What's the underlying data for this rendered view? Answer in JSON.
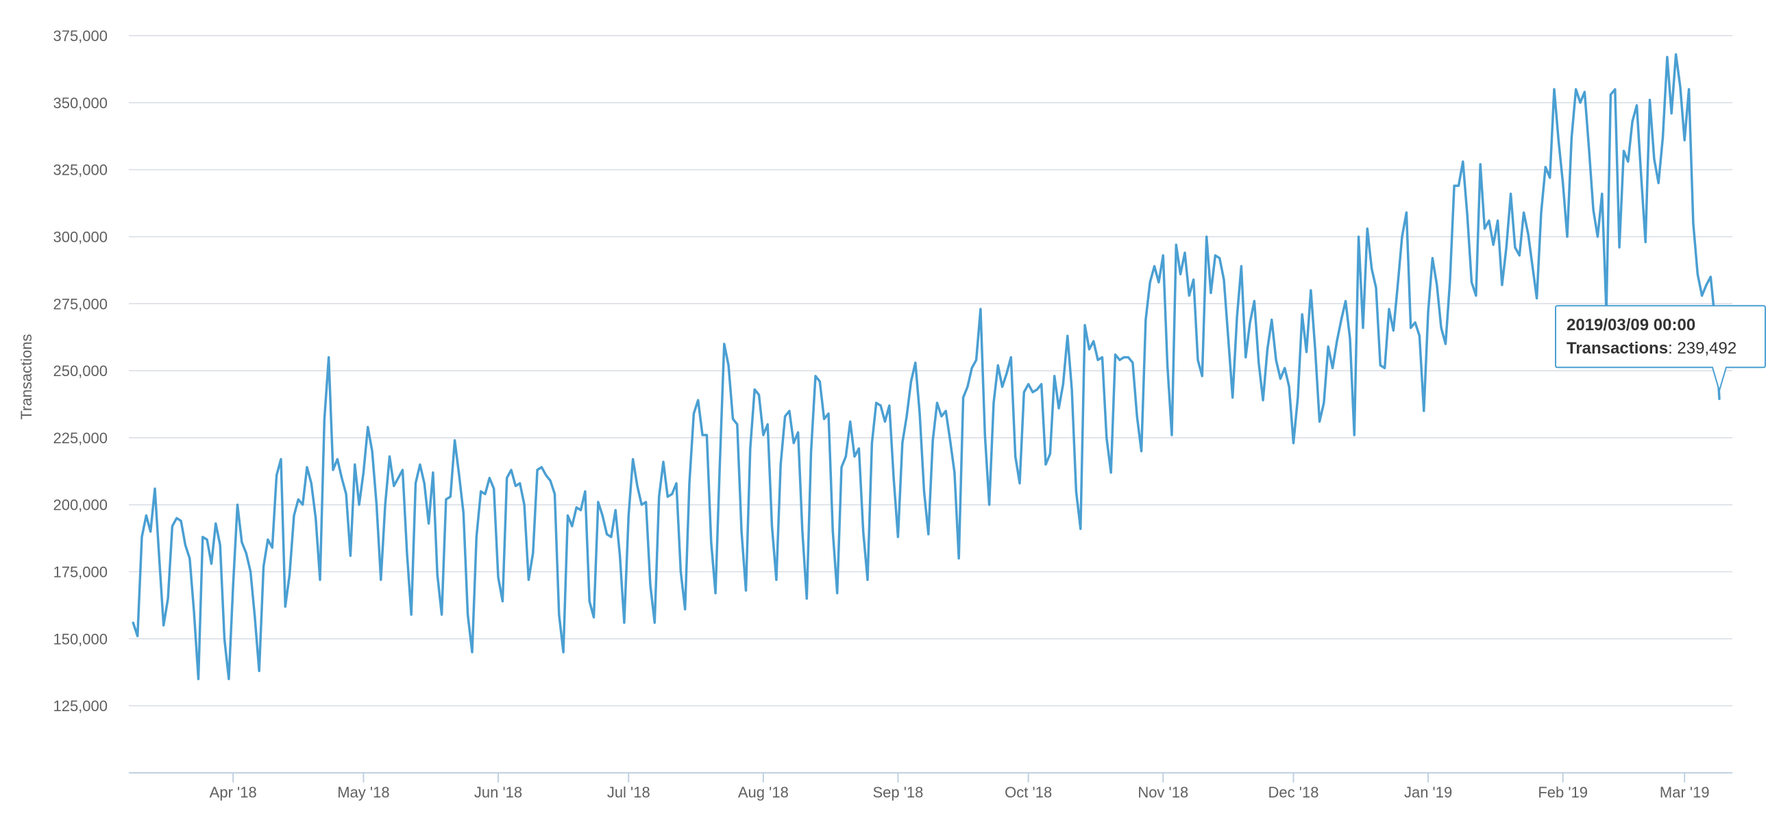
{
  "chart_data": {
    "type": "line",
    "ylabel": "Transactions",
    "xlabel": "",
    "ylim": [
      100000,
      375000
    ],
    "xlim": [
      "2018-03-08",
      "2019-03-12"
    ],
    "yticks": [
      {
        "value": 125000,
        "label": "125,000"
      },
      {
        "value": 150000,
        "label": "150,000"
      },
      {
        "value": 175000,
        "label": "175,000"
      },
      {
        "value": 200000,
        "label": "200,000"
      },
      {
        "value": 225000,
        "label": "225,000"
      },
      {
        "value": 250000,
        "label": "250,000"
      },
      {
        "value": 275000,
        "label": "275,000"
      },
      {
        "value": 300000,
        "label": "300,000"
      },
      {
        "value": 325000,
        "label": "325,000"
      },
      {
        "value": 350000,
        "label": "350,000"
      },
      {
        "value": 375000,
        "label": "375,000"
      }
    ],
    "xticks": [
      {
        "date": "2018-04-01",
        "label": "Apr '18"
      },
      {
        "date": "2018-05-01",
        "label": "May '18"
      },
      {
        "date": "2018-06-01",
        "label": "Jun '18"
      },
      {
        "date": "2018-07-01",
        "label": "Jul '18"
      },
      {
        "date": "2018-08-01",
        "label": "Aug '18"
      },
      {
        "date": "2018-09-01",
        "label": "Sep '18"
      },
      {
        "date": "2018-10-01",
        "label": "Oct '18"
      },
      {
        "date": "2018-11-01",
        "label": "Nov '18"
      },
      {
        "date": "2018-12-01",
        "label": "Dec '18"
      },
      {
        "date": "2019-01-01",
        "label": "Jan '19"
      },
      {
        "date": "2019-02-01",
        "label": "Feb '19"
      },
      {
        "date": "2019-03-01",
        "label": "Mar '19"
      }
    ],
    "grid": true,
    "legend": "none",
    "series": [
      {
        "color": "#4a9fd2",
        "x": [
          "2018-03-09",
          "2018-03-10",
          "2018-03-11",
          "2018-03-12",
          "2018-03-13",
          "2018-03-14",
          "2018-03-15",
          "2018-03-16",
          "2018-03-17",
          "2018-03-18",
          "2018-03-19",
          "2018-03-20",
          "2018-03-21",
          "2018-03-22",
          "2018-03-23",
          "2018-03-24",
          "2018-03-25",
          "2018-03-26",
          "2018-03-27",
          "2018-03-28",
          "2018-03-29",
          "2018-03-30",
          "2018-03-31",
          "2018-04-01",
          "2018-04-02",
          "2018-04-03",
          "2018-04-04",
          "2018-04-05",
          "2018-04-06",
          "2018-04-07",
          "2018-04-08",
          "2018-04-09",
          "2018-04-10",
          "2018-04-11",
          "2018-04-12",
          "2018-04-13",
          "2018-04-14",
          "2018-04-15",
          "2018-04-16",
          "2018-04-17",
          "2018-04-18",
          "2018-04-19",
          "2018-04-20",
          "2018-04-21",
          "2018-04-22",
          "2018-04-23",
          "2018-04-24",
          "2018-04-25",
          "2018-04-26",
          "2018-04-27",
          "2018-04-28",
          "2018-04-29",
          "2018-04-30",
          "2018-05-01",
          "2018-05-02",
          "2018-05-03",
          "2018-05-04",
          "2018-05-05",
          "2018-05-06",
          "2018-05-07",
          "2018-05-08",
          "2018-05-09",
          "2018-05-10",
          "2018-05-11",
          "2018-05-12",
          "2018-05-13",
          "2018-05-14",
          "2018-05-15",
          "2018-05-16",
          "2018-05-17",
          "2018-05-18",
          "2018-05-19",
          "2018-05-20",
          "2018-05-21",
          "2018-05-22",
          "2018-05-23",
          "2018-05-24",
          "2018-05-25",
          "2018-05-26",
          "2018-05-27",
          "2018-05-28",
          "2018-05-29",
          "2018-05-30",
          "2018-05-31",
          "2018-06-01",
          "2018-06-02",
          "2018-06-03",
          "2018-06-04",
          "2018-06-05",
          "2018-06-06",
          "2018-06-07",
          "2018-06-08",
          "2018-06-09",
          "2018-06-10",
          "2018-06-11",
          "2018-06-12",
          "2018-06-13",
          "2018-06-14",
          "2018-06-15",
          "2018-06-16",
          "2018-06-17",
          "2018-06-18",
          "2018-06-19",
          "2018-06-20",
          "2018-06-21",
          "2018-06-22",
          "2018-06-23",
          "2018-06-24",
          "2018-06-25",
          "2018-06-26",
          "2018-06-27",
          "2018-06-28",
          "2018-06-29",
          "2018-06-30",
          "2018-07-01",
          "2018-07-02",
          "2018-07-03",
          "2018-07-04",
          "2018-07-05",
          "2018-07-06",
          "2018-07-07",
          "2018-07-08",
          "2018-07-09",
          "2018-07-10",
          "2018-07-11",
          "2018-07-12",
          "2018-07-13",
          "2018-07-14",
          "2018-07-15",
          "2018-07-16",
          "2018-07-17",
          "2018-07-18",
          "2018-07-19",
          "2018-07-20",
          "2018-07-21",
          "2018-07-22",
          "2018-07-23",
          "2018-07-24",
          "2018-07-25",
          "2018-07-26",
          "2018-07-27",
          "2018-07-28",
          "2018-07-29",
          "2018-07-30",
          "2018-07-31",
          "2018-08-01",
          "2018-08-02",
          "2018-08-03",
          "2018-08-04",
          "2018-08-05",
          "2018-08-06",
          "2018-08-07",
          "2018-08-08",
          "2018-08-09",
          "2018-08-10",
          "2018-08-11",
          "2018-08-12",
          "2018-08-13",
          "2018-08-14",
          "2018-08-15",
          "2018-08-16",
          "2018-08-17",
          "2018-08-18",
          "2018-08-19",
          "2018-08-20",
          "2018-08-21",
          "2018-08-22",
          "2018-08-23",
          "2018-08-24",
          "2018-08-25",
          "2018-08-26",
          "2018-08-27",
          "2018-08-28",
          "2018-08-29",
          "2018-08-30",
          "2018-08-31",
          "2018-09-01",
          "2018-09-02",
          "2018-09-03",
          "2018-09-04",
          "2018-09-05",
          "2018-09-06",
          "2018-09-07",
          "2018-09-08",
          "2018-09-09",
          "2018-09-10",
          "2018-09-11",
          "2018-09-12",
          "2018-09-13",
          "2018-09-14",
          "2018-09-15",
          "2018-09-16",
          "2018-09-17",
          "2018-09-18",
          "2018-09-19",
          "2018-09-20",
          "2018-09-21",
          "2018-09-22",
          "2018-09-23",
          "2018-09-24",
          "2018-09-25",
          "2018-09-26",
          "2018-09-27",
          "2018-09-28",
          "2018-09-29",
          "2018-09-30",
          "2018-10-01",
          "2018-10-02",
          "2018-10-03",
          "2018-10-04",
          "2018-10-05",
          "2018-10-06",
          "2018-10-07",
          "2018-10-08",
          "2018-10-09",
          "2018-10-10",
          "2018-10-11",
          "2018-10-12",
          "2018-10-13",
          "2018-10-14",
          "2018-10-15",
          "2018-10-16",
          "2018-10-17",
          "2018-10-18",
          "2018-10-19",
          "2018-10-20",
          "2018-10-21",
          "2018-10-22",
          "2018-10-23",
          "2018-10-24",
          "2018-10-25",
          "2018-10-26",
          "2018-10-27",
          "2018-10-28",
          "2018-10-29",
          "2018-10-30",
          "2018-10-31",
          "2018-11-01",
          "2018-11-02",
          "2018-11-03",
          "2018-11-04",
          "2018-11-05",
          "2018-11-06",
          "2018-11-07",
          "2018-11-08",
          "2018-11-09",
          "2018-11-10",
          "2018-11-11",
          "2018-11-12",
          "2018-11-13",
          "2018-11-14",
          "2018-11-15",
          "2018-11-16",
          "2018-11-17",
          "2018-11-18",
          "2018-11-19",
          "2018-11-20",
          "2018-11-21",
          "2018-11-22",
          "2018-11-23",
          "2018-11-24",
          "2018-11-25",
          "2018-11-26",
          "2018-11-27",
          "2018-11-28",
          "2018-11-29",
          "2018-11-30",
          "2018-12-01",
          "2018-12-02",
          "2018-12-03",
          "2018-12-04",
          "2018-12-05",
          "2018-12-06",
          "2018-12-07",
          "2018-12-08",
          "2018-12-09",
          "2018-12-10",
          "2018-12-11",
          "2018-12-12",
          "2018-12-13",
          "2018-12-14",
          "2018-12-15",
          "2018-12-16",
          "2018-12-17",
          "2018-12-18",
          "2018-12-19",
          "2018-12-20",
          "2018-12-21",
          "2018-12-22",
          "2018-12-23",
          "2018-12-24",
          "2018-12-25",
          "2018-12-26",
          "2018-12-27",
          "2018-12-28",
          "2018-12-29",
          "2018-12-30",
          "2018-12-31",
          "2019-01-01",
          "2019-01-02",
          "2019-01-03",
          "2019-01-04",
          "2019-01-05",
          "2019-01-06",
          "2019-01-07",
          "2019-01-08",
          "2019-01-09",
          "2019-01-10",
          "2019-01-11",
          "2019-01-12",
          "2019-01-13",
          "2019-01-14",
          "2019-01-15",
          "2019-01-16",
          "2019-01-17",
          "2019-01-18",
          "2019-01-19",
          "2019-01-20",
          "2019-01-21",
          "2019-01-22",
          "2019-01-23",
          "2019-01-24",
          "2019-01-25",
          "2019-01-26",
          "2019-01-27",
          "2019-01-28",
          "2019-01-29",
          "2019-01-30",
          "2019-01-31",
          "2019-02-01",
          "2019-02-02",
          "2019-02-03",
          "2019-02-04",
          "2019-02-05",
          "2019-02-06",
          "2019-02-07",
          "2019-02-08",
          "2019-02-09",
          "2019-02-10",
          "2019-02-11",
          "2019-02-12",
          "2019-02-13",
          "2019-02-14",
          "2019-02-15",
          "2019-02-16",
          "2019-02-17",
          "2019-02-18",
          "2019-02-19",
          "2019-02-20",
          "2019-02-21",
          "2019-02-22",
          "2019-02-23",
          "2019-02-24",
          "2019-02-25",
          "2019-02-26",
          "2019-02-27",
          "2019-02-28",
          "2019-03-01",
          "2019-03-02",
          "2019-03-03",
          "2019-03-04",
          "2019-03-05",
          "2019-03-06",
          "2019-03-07",
          "2019-03-08",
          "2019-03-09"
        ],
        "values": [
          156000,
          151000,
          188000,
          196000,
          190000,
          206000,
          180000,
          155000,
          165000,
          192000,
          195000,
          194000,
          185000,
          180000,
          160000,
          135000,
          188000,
          187000,
          178000,
          193000,
          185000,
          150000,
          135000,
          170000,
          200000,
          186000,
          182000,
          175000,
          158000,
          138000,
          177000,
          187000,
          184000,
          211000,
          217000,
          162000,
          174000,
          196000,
          202000,
          200000,
          214000,
          208000,
          195000,
          172000,
          232000,
          255000,
          213000,
          217000,
          210000,
          204000,
          181000,
          215000,
          200000,
          212000,
          229000,
          220000,
          200000,
          172000,
          200000,
          218000,
          207000,
          210000,
          213000,
          182000,
          159000,
          208000,
          215000,
          208000,
          193000,
          212000,
          174000,
          159000,
          202000,
          203000,
          224000,
          211000,
          197000,
          159000,
          145000,
          188000,
          205000,
          204000,
          210000,
          206000,
          173000,
          164000,
          210000,
          213000,
          207000,
          208000,
          200000,
          172000,
          182000,
          213000,
          214000,
          211000,
          209000,
          204000,
          159000,
          145000,
          196000,
          192000,
          199000,
          198000,
          205000,
          164000,
          158000,
          201000,
          196000,
          189000,
          188000,
          198000,
          181000,
          156000,
          196000,
          217000,
          207000,
          200000,
          201000,
          170000,
          156000,
          203000,
          216000,
          203000,
          204000,
          208000,
          175000,
          161000,
          208000,
          234000,
          239000,
          226000,
          226000,
          186000,
          167000,
          215000,
          260000,
          252000,
          232000,
          230000,
          190000,
          168000,
          221000,
          243000,
          241000,
          226000,
          230000,
          192000,
          172000,
          215000,
          233000,
          235000,
          223000,
          227000,
          190000,
          165000,
          220000,
          248000,
          246000,
          232000,
          234000,
          190000,
          167000,
          214000,
          218000,
          231000,
          218000,
          221000,
          190000,
          172000,
          223000,
          238000,
          237000,
          231000,
          237000,
          210000,
          188000,
          223000,
          233000,
          246000,
          253000,
          234000,
          205000,
          189000,
          224000,
          238000,
          233000,
          235000,
          224000,
          212000,
          180000,
          240000,
          244000,
          251000,
          254000,
          273000,
          226000,
          200000,
          238000,
          252000,
          244000,
          249000,
          255000,
          218000,
          208000,
          242000,
          245000,
          242000,
          243000,
          245000,
          215000,
          219000,
          248000,
          236000,
          245000,
          263000,
          243000,
          205000,
          191000,
          267000,
          258000,
          261000,
          254000,
          255000,
          225000,
          212000,
          256000,
          254000,
          255000,
          255000,
          253000,
          233000,
          220000,
          269000,
          283000,
          289000,
          283000,
          293000,
          252000,
          226000,
          297000,
          286000,
          294000,
          278000,
          284000,
          254000,
          248000,
          300000,
          279000,
          293000,
          292000,
          284000,
          262000,
          240000,
          270000,
          289000,
          255000,
          268000,
          276000,
          253000,
          239000,
          258000,
          269000,
          254000,
          247000,
          251000,
          244000,
          223000,
          240000,
          271000,
          257000,
          280000,
          258000,
          231000,
          238000,
          259000,
          251000,
          261000,
          269000,
          276000,
          262000,
          226000,
          300000,
          266000,
          303000,
          288000,
          281000,
          252000,
          251000,
          273000,
          265000,
          282000,
          300000,
          309000,
          266000,
          268000,
          263000,
          235000,
          272000,
          292000,
          282000,
          266000,
          260000,
          283000,
          319000,
          319000,
          328000,
          308000,
          283000,
          278000,
          327000,
          303000,
          306000,
          297000,
          306000,
          282000,
          296000,
          316000,
          296000,
          293000,
          309000,
          301000,
          289000,
          277000,
          309000,
          326000,
          322000,
          355000,
          336000,
          320000,
          300000,
          337000,
          355000,
          350000,
          354000,
          333000,
          310000,
          300000,
          316000,
          272000,
          353000,
          355000,
          296000,
          332000,
          328000,
          343000,
          349000,
          323000,
          298000,
          351000,
          329000,
          320000,
          337000,
          367000,
          346000,
          368000,
          356000,
          336000,
          355000,
          305000,
          286000,
          278000,
          282000,
          285000,
          269000,
          239492
        ]
      }
    ],
    "tooltip": {
      "date": "2019/03/09 00:00",
      "series_label": "Transactions",
      "value_label": "239,492"
    }
  }
}
